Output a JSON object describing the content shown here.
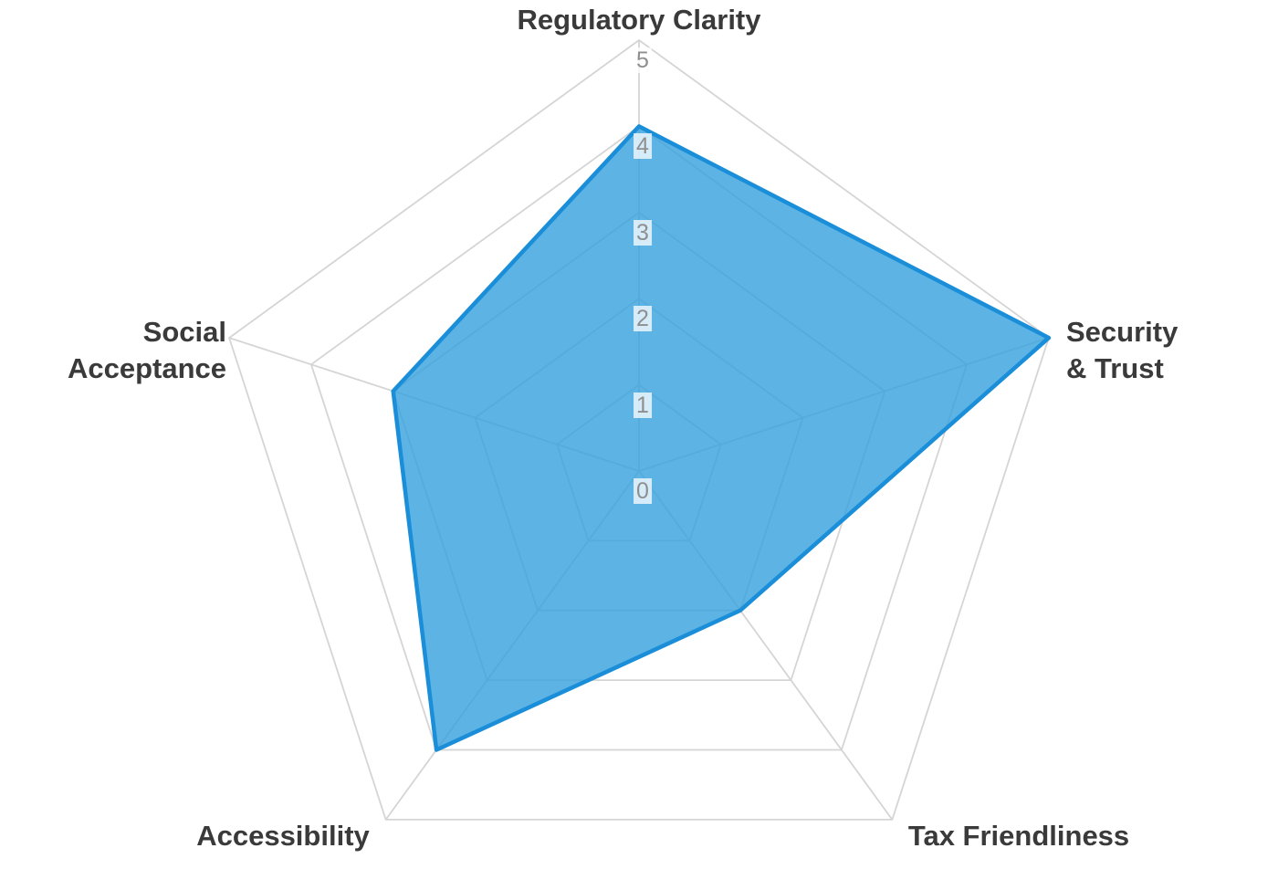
{
  "chart_data": {
    "type": "radar",
    "categories": [
      "Regulatory Clarity",
      "Security & Trust",
      "Tax Friendliness",
      "Accessibility",
      "Social Acceptance"
    ],
    "values": [
      4,
      5,
      2,
      4,
      3
    ],
    "axis_labels": [
      "Regulatory Clarity",
      "Security\n& Trust",
      "Tax Friendliness",
      "Accessibility",
      "Social\nAcceptance"
    ],
    "scale": {
      "min": 0,
      "max": 5,
      "step": 1,
      "ticks": [
        "0",
        "1",
        "2",
        "3",
        "4",
        "5"
      ]
    },
    "legend": "none",
    "grid": true,
    "colors": {
      "grid_line": "#d5d5d5",
      "series_fill": "rgba(51, 160, 221, 0.8)",
      "series_stroke": "#1a8ed8",
      "axis_label": "#3a3a3a",
      "tick_label": "#8f8f8f",
      "background": "#ffffff"
    }
  }
}
